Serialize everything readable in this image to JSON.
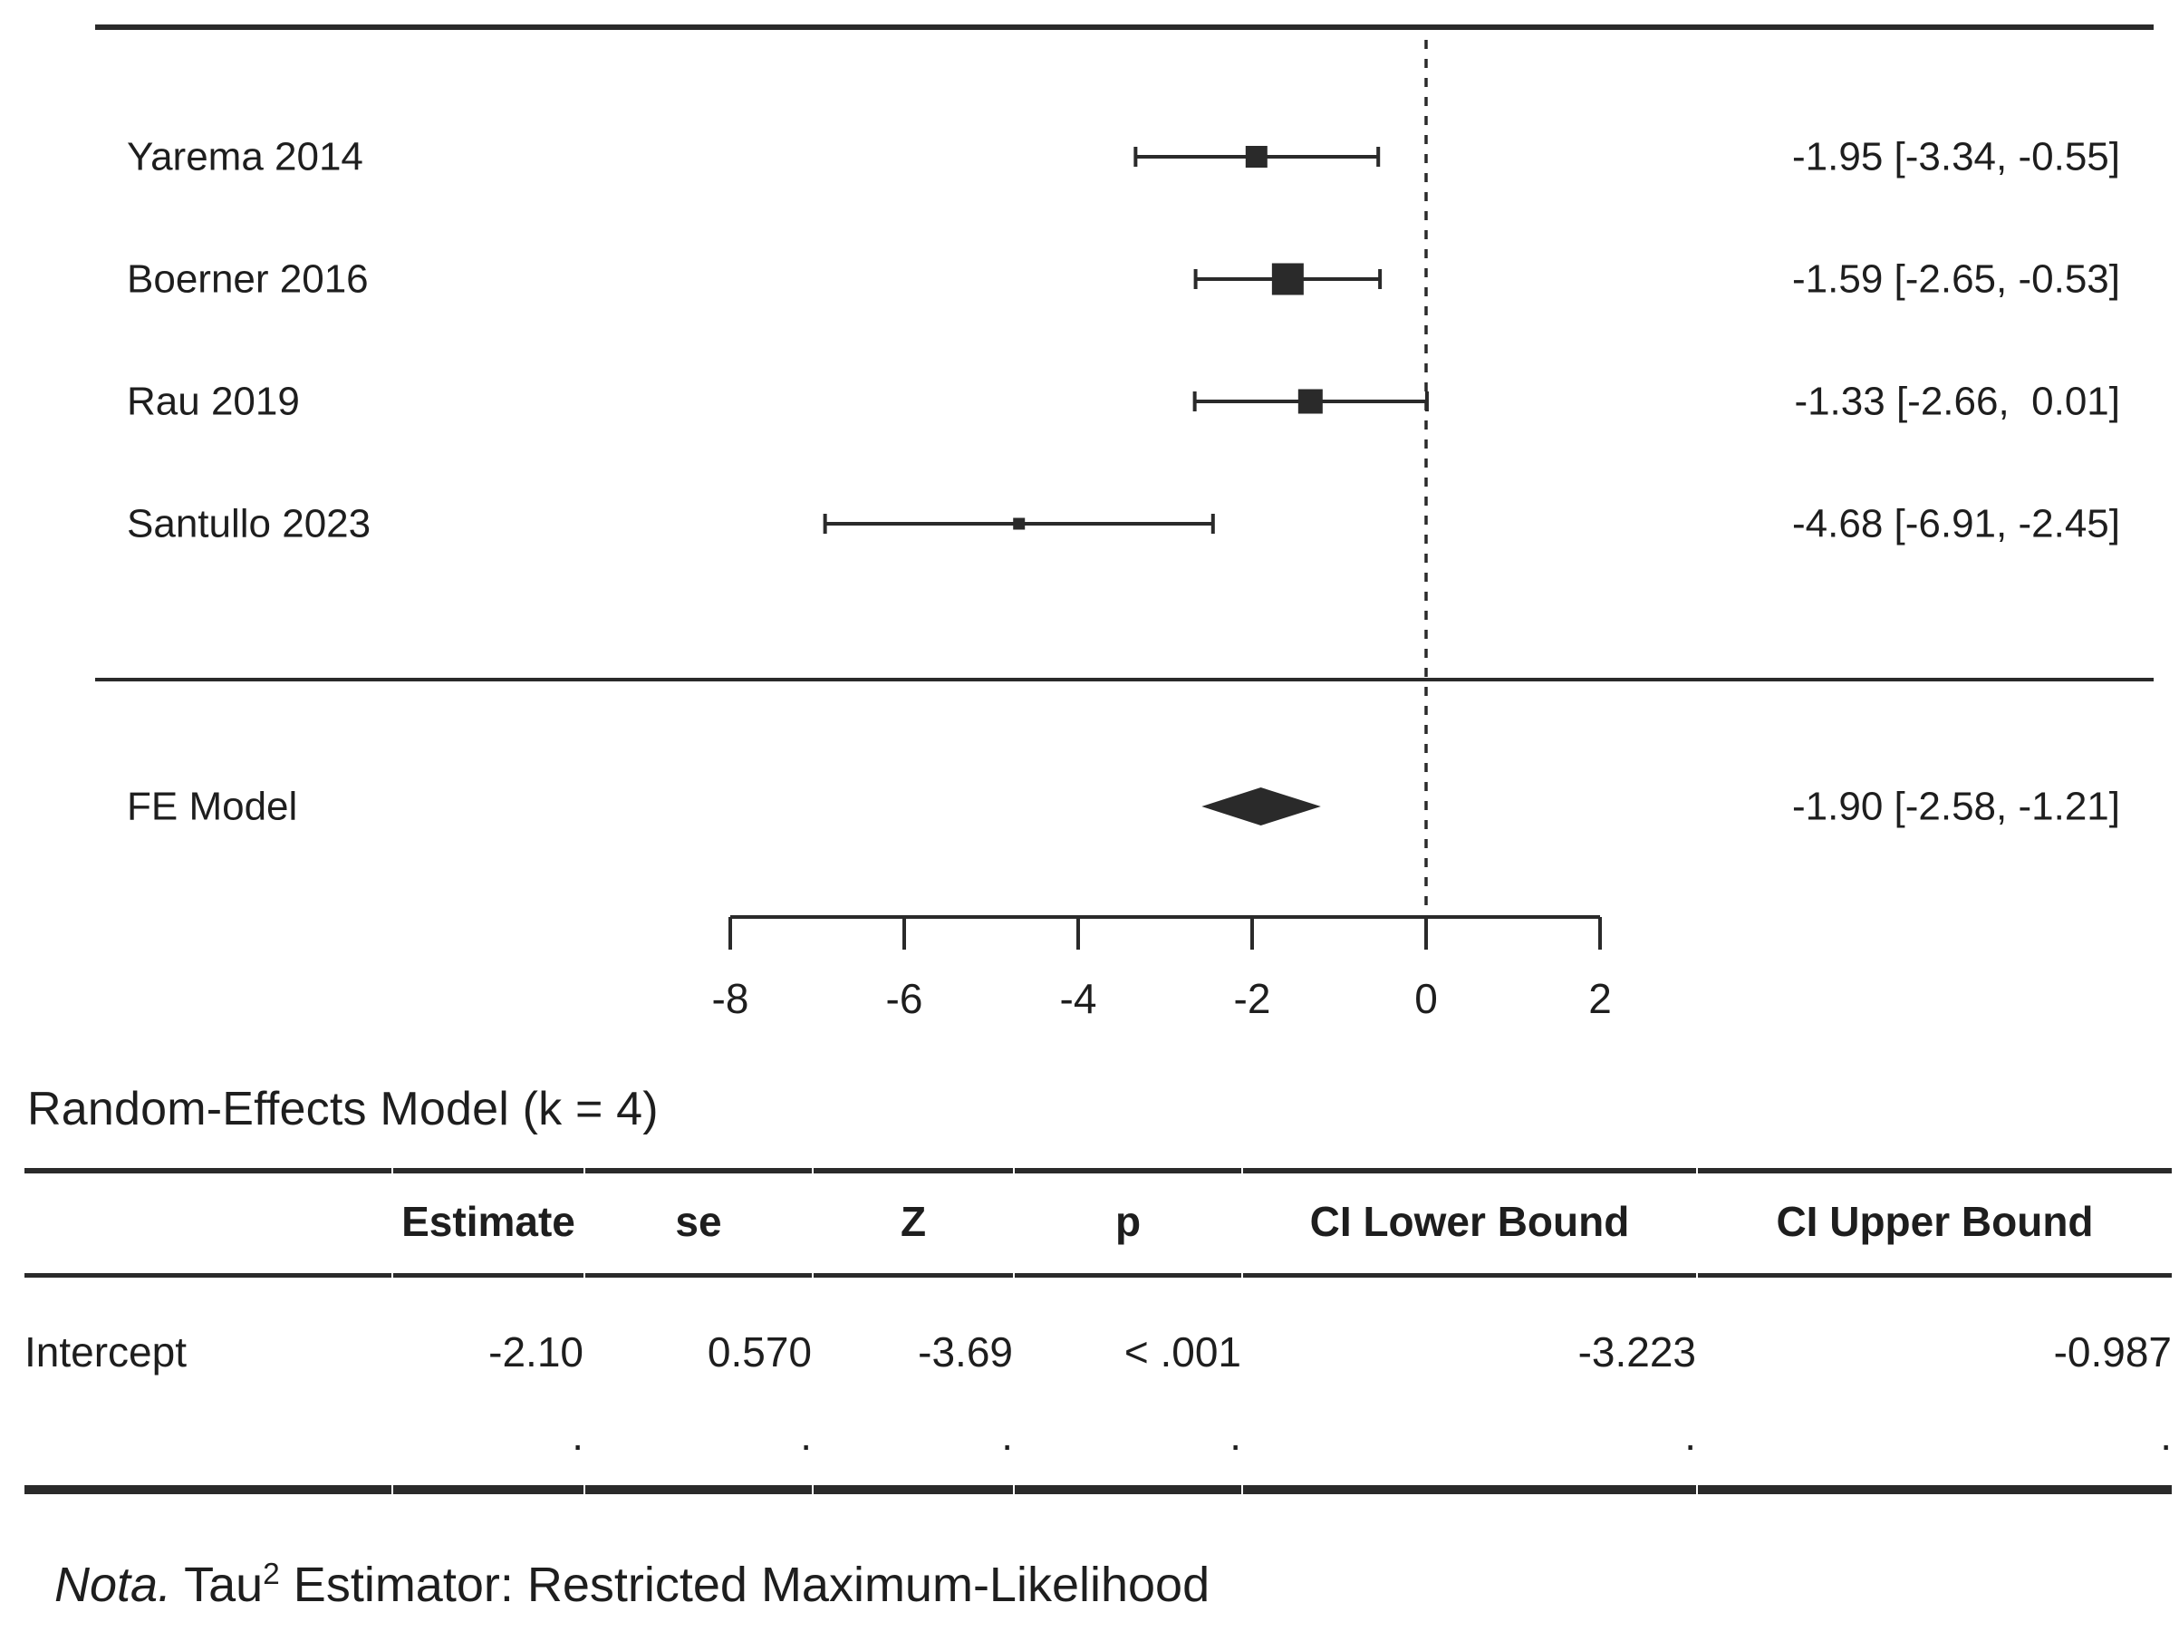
{
  "figure": {
    "background": "#ffffff",
    "line_color": "#2a2a2a",
    "text_color": "#1e1e1e"
  },
  "chart_data": {
    "type": "forest",
    "title": "",
    "xlabel": "",
    "x_ticks": [
      -8,
      -6,
      -4,
      -2,
      0,
      2
    ],
    "x_axis_range": [
      -8,
      2
    ],
    "zero_line": 0,
    "grid": false,
    "studies": [
      {
        "label": "Yarema 2014",
        "estimate": -1.95,
        "ci_lower": -3.34,
        "ci_upper": -0.55,
        "annotation": "-1.95 [-3.34, -0.55]",
        "marker_size": 24
      },
      {
        "label": "Boerner 2016",
        "estimate": -1.59,
        "ci_lower": -2.65,
        "ci_upper": -0.53,
        "annotation": "-1.59 [-2.65, -0.53]",
        "marker_size": 35
      },
      {
        "label": "Rau 2019",
        "estimate": -1.33,
        "ci_lower": -2.66,
        "ci_upper": 0.01,
        "annotation": "-1.33 [-2.66,  0.01]",
        "marker_size": 27
      },
      {
        "label": "Santullo 2023",
        "estimate": -4.68,
        "ci_lower": -6.91,
        "ci_upper": -2.45,
        "annotation": "-4.68 [-6.91, -2.45]",
        "marker_size": 13
      }
    ],
    "summary": {
      "label": "FE Model",
      "estimate": -1.9,
      "ci_lower": -2.58,
      "ci_upper": -1.21,
      "annotation": "-1.90 [-2.58, -1.21]"
    }
  },
  "model_table": {
    "title": "Random-Effects Model (k = 4)",
    "headers": [
      "",
      "Estimate",
      "se",
      "Z",
      "p",
      "CI Lower Bound",
      "CI Upper Bound"
    ],
    "rows": [
      {
        "kind": "data",
        "cells": [
          "Intercept",
          "-2.10",
          "0.570",
          "-3.69",
          "< .001",
          "-3.223",
          "-0.987"
        ]
      },
      {
        "kind": "dots",
        "cells": [
          "",
          ".",
          ".",
          ".",
          ".",
          ".",
          "."
        ]
      }
    ]
  },
  "note": {
    "prefix": "Nota.",
    "tau": " Tau",
    "sup": "2",
    "rest": " Estimator: Restricted Maximum-Likelihood"
  }
}
